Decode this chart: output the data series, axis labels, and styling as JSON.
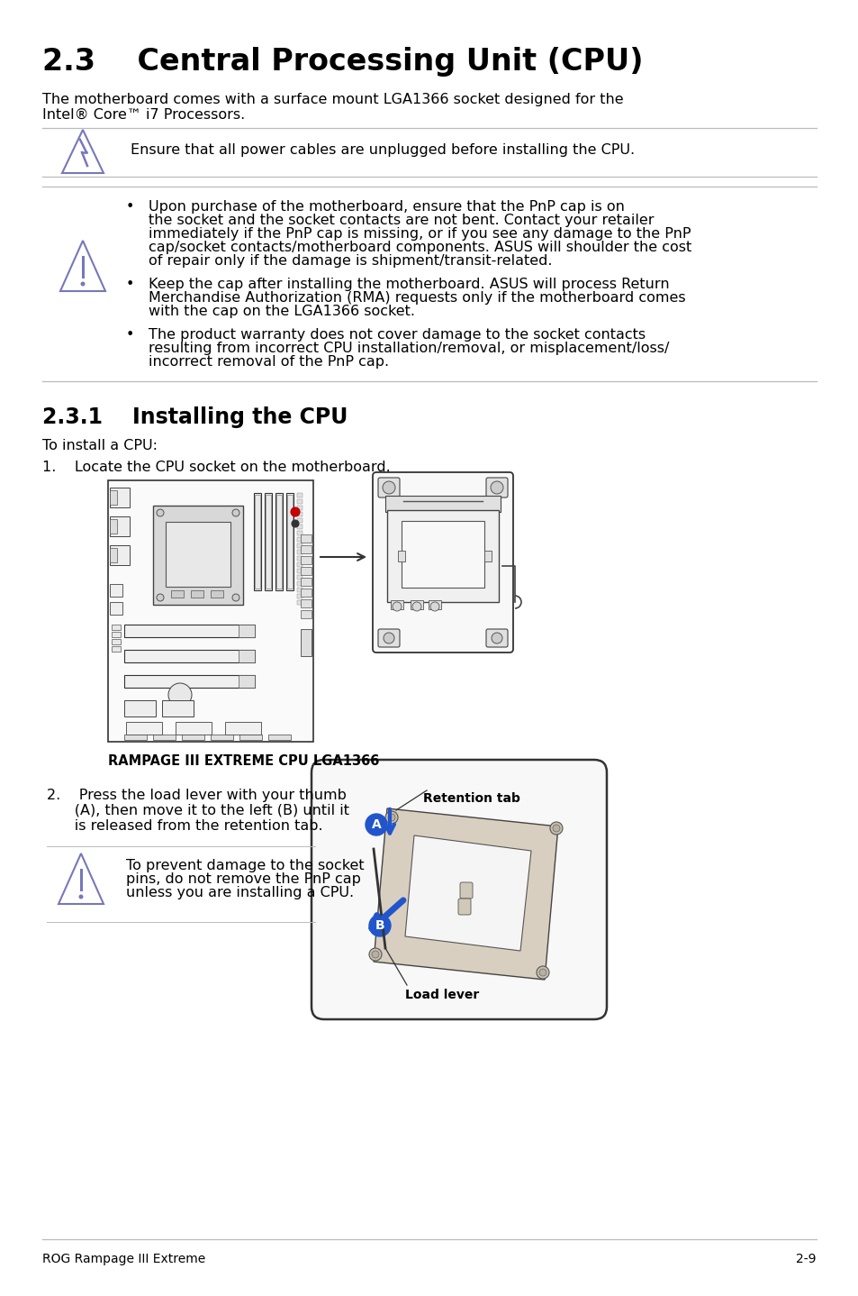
{
  "title": "2.3    Central Processing Unit (CPU)",
  "intro_text_1": "The motherboard comes with a surface mount LGA1366 socket designed for the",
  "intro_text_2": "Intel® Core™ i7 Processors.",
  "warning1_text": "Ensure that all power cables are unplugged before installing the CPU.",
  "section_title": "2.3.1    Installing the CPU",
  "to_install": "To install a CPU:",
  "step1": "1.    Locate the CPU socket on the motherboard.",
  "motherboard_label": "RAMPAGE III EXTREME CPU LGA1366",
  "step2_line1": "2.    Press the load lever with your thumb",
  "step2_line2": "      (A), then move it to the left (B) until it",
  "step2_line3": "      is released from the retention tab.",
  "caution2_line1": "To prevent damage to the socket",
  "caution2_line2": "pins, do not remove the PnP cap",
  "caution2_line3": "unless you are installing a CPU.",
  "retention_tab_label": "Retention tab",
  "load_lever_label": "Load lever",
  "label_A": "A",
  "label_B": "B",
  "footer_left": "ROG Rampage III Extreme",
  "footer_right": "2-9",
  "bg_color": "#ffffff",
  "text_color": "#000000",
  "line_color": "#bbbbbb",
  "icon_color": "#7777bb",
  "title_fontsize": 24,
  "section_fontsize": 17,
  "body_fontsize": 11.5,
  "small_fontsize": 10,
  "b1_lines": [
    "Upon purchase of the motherboard, ensure that the PnP cap is on",
    "the socket and the socket contacts are not bent. Contact your retailer",
    "immediately if the PnP cap is missing, or if you see any damage to the PnP",
    "cap/socket contacts/motherboard components. ASUS will shoulder the cost",
    "of repair only if the damage is shipment/transit-related."
  ],
  "b2_lines": [
    "Keep the cap after installing the motherboard. ASUS will process Return",
    "Merchandise Authorization (RMA) requests only if the motherboard comes",
    "with the cap on the LGA1366 socket."
  ],
  "b3_lines": [
    "The product warranty does not cover damage to the socket contacts",
    "resulting from incorrect CPU installation/removal, or misplacement/loss/",
    "incorrect removal of the PnP cap."
  ]
}
